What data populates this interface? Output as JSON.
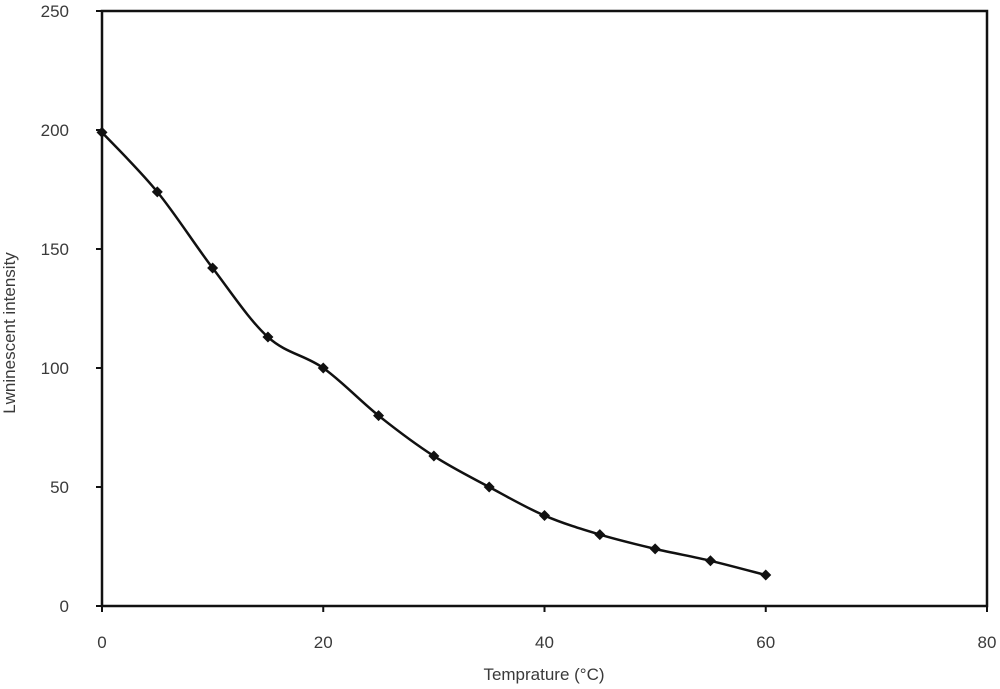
{
  "chart_data": {
    "type": "line",
    "title": "",
    "xlabel": "Temprature (°C)",
    "ylabel": "Lwninescent intensity",
    "xlim": [
      0,
      80
    ],
    "ylim": [
      0,
      250
    ],
    "x_ticks": [
      "0",
      "20",
      "40",
      "60",
      "80"
    ],
    "y_ticks": [
      "0",
      "50",
      "100",
      "150",
      "200",
      "250"
    ],
    "grid": false,
    "legend": "none",
    "line_color": "#111111",
    "marker": "diamond",
    "smooth": true,
    "series": [
      {
        "x": [
          0,
          5,
          10,
          15,
          20,
          25,
          30,
          35,
          40,
          45,
          50,
          55,
          60
        ],
        "values": [
          199,
          174,
          142,
          113,
          100,
          80,
          63,
          50,
          38,
          30,
          24,
          19,
          13
        ]
      }
    ]
  }
}
